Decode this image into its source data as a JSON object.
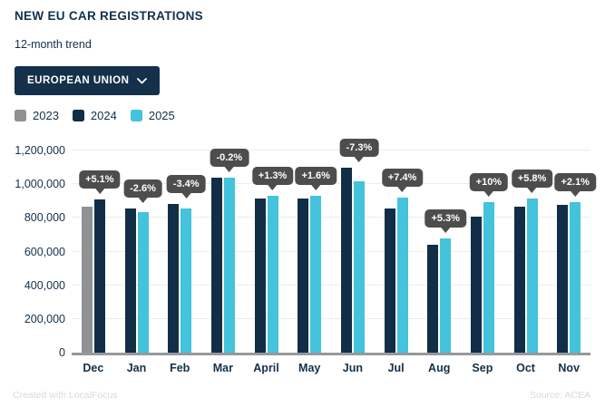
{
  "header": {
    "title": "NEW EU CAR REGISTRATIONS",
    "subtitle": "12-month trend"
  },
  "region_filter": {
    "label": "EUROPEAN UNION",
    "chevron_icon": "chevron-down-icon"
  },
  "legend": {
    "items": [
      "2023",
      "2024",
      "2025"
    ]
  },
  "footer": {
    "credit": "Created with LocalFocus",
    "source": "Source: ACEA"
  },
  "colors": {
    "navy": "#14304a",
    "series_2023_gray": "#8f9193",
    "series_2024_navy": "#122e46",
    "series_2025_cyan": "#43c3dc",
    "callout_bg": "#4d4d4d",
    "gridline": "#ededed",
    "axis_line": "#97989b",
    "footer_text": "#d9d9d9"
  },
  "chart_data": {
    "type": "bar",
    "title": "NEW EU CAR REGISTRATIONS",
    "subtitle": "12-month trend",
    "categories": [
      "Dec",
      "Jan",
      "Feb",
      "Mar",
      "April",
      "May",
      "Jun",
      "Jul",
      "Aug",
      "Sep",
      "Oct",
      "Nov"
    ],
    "xlabel": "",
    "ylabel": "",
    "ylim": [
      0,
      1200000
    ],
    "grid": true,
    "legend_position": "top-left",
    "yticks": [
      {
        "value": 0,
        "label": "0"
      },
      {
        "value": 200000,
        "label": "200,000"
      },
      {
        "value": 400000,
        "label": "400,000"
      },
      {
        "value": 600000,
        "label": "600,000"
      },
      {
        "value": 800000,
        "label": "800,000"
      },
      {
        "value": 1000000,
        "label": "1,000,000"
      },
      {
        "value": 1200000,
        "label": "1,200,000"
      }
    ],
    "series": [
      {
        "name": "2023",
        "color": "#8f9193",
        "values": [
          866000,
          null,
          null,
          null,
          null,
          null,
          null,
          null,
          null,
          null,
          null,
          null
        ]
      },
      {
        "name": "2024",
        "color": "#122e46",
        "values": [
          910000,
          857000,
          884000,
          1040000,
          917000,
          914000,
          1100000,
          855000,
          643000,
          810000,
          867000,
          877000
        ]
      },
      {
        "name": "2025",
        "color": "#43c3dc",
        "values": [
          null,
          834000,
          854000,
          1038000,
          929000,
          929000,
          1020000,
          918000,
          677000,
          891000,
          917000,
          895000
        ]
      }
    ],
    "yoy_change_labels": [
      "+5.1%",
      "-2.6%",
      "-3.4%",
      "-0.2%",
      "+1.3%",
      "+1.6%",
      "-7.3%",
      "+7.4%",
      "+5.3%",
      "+10%",
      "+5.8%",
      "+2.1%"
    ]
  }
}
